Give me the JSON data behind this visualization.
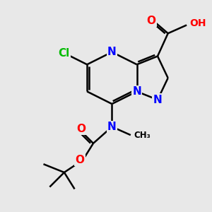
{
  "bg_color": "#e8e8e8",
  "atom_colors": {
    "N": "#0000ff",
    "O": "#ff0000",
    "Cl": "#00bb00",
    "H": "#888888",
    "C": "#000000"
  },
  "bond_color": "#000000",
  "bond_lw": 1.8,
  "font_size": 11,
  "figsize": [
    3.0,
    3.0
  ],
  "dpi": 100
}
